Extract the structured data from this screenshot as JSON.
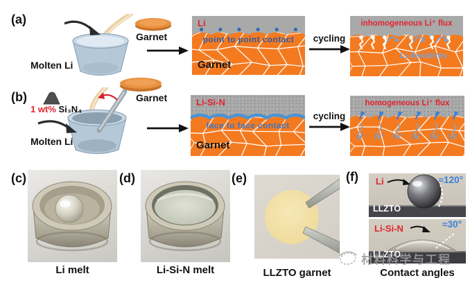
{
  "panel_a": {
    "label": "(a)",
    "molten_li": "Molten Li",
    "garnet": "Garnet",
    "cycling": "cycling",
    "schematic": {
      "li": "Li",
      "contact": "point to point contact",
      "garnet": "Garnet"
    },
    "after": {
      "flux": "inhomogeneous Li⁺ flux",
      "dendrites": "Li dendrites"
    }
  },
  "panel_b": {
    "label": "(b)",
    "additive_amount": "1 wt%",
    "additive_formula": "Si₃N₄",
    "molten_li": "Molten Li",
    "garnet": "Garnet",
    "cycling": "cycling",
    "schematic": {
      "material": "Li-Si-N",
      "contact": "face to face contact",
      "garnet": "Garnet"
    },
    "after": {
      "flux": "homogeneous Li⁺ flux",
      "ion": "Li⁺"
    }
  },
  "panel_c": {
    "label": "(c)",
    "caption": "Li melt"
  },
  "panel_d": {
    "label": "(d)",
    "caption": "Li-Si-N melt"
  },
  "panel_e": {
    "label": "(e)",
    "caption": "LLZTO garnet"
  },
  "panel_f": {
    "label": "(f)",
    "caption": "Contact angles",
    "li": {
      "material": "Li",
      "angle": "≈120°",
      "substrate": "LLZTO"
    },
    "lisin": {
      "material": "Li-Si-N",
      "angle": "≈30°",
      "substrate": "LLZTO"
    }
  },
  "watermark": {
    "text": "材料科学与工程"
  },
  "colors": {
    "garnet_orange": "#f47a20",
    "li_gray": "#a9a9a9",
    "label_red": "#e02530",
    "contact_blue": "#2a5ca8",
    "flux_blue": "#3b82d8",
    "dendrite_blue": "#7aa0d4",
    "watermark_gray": "#9d9d9d"
  }
}
